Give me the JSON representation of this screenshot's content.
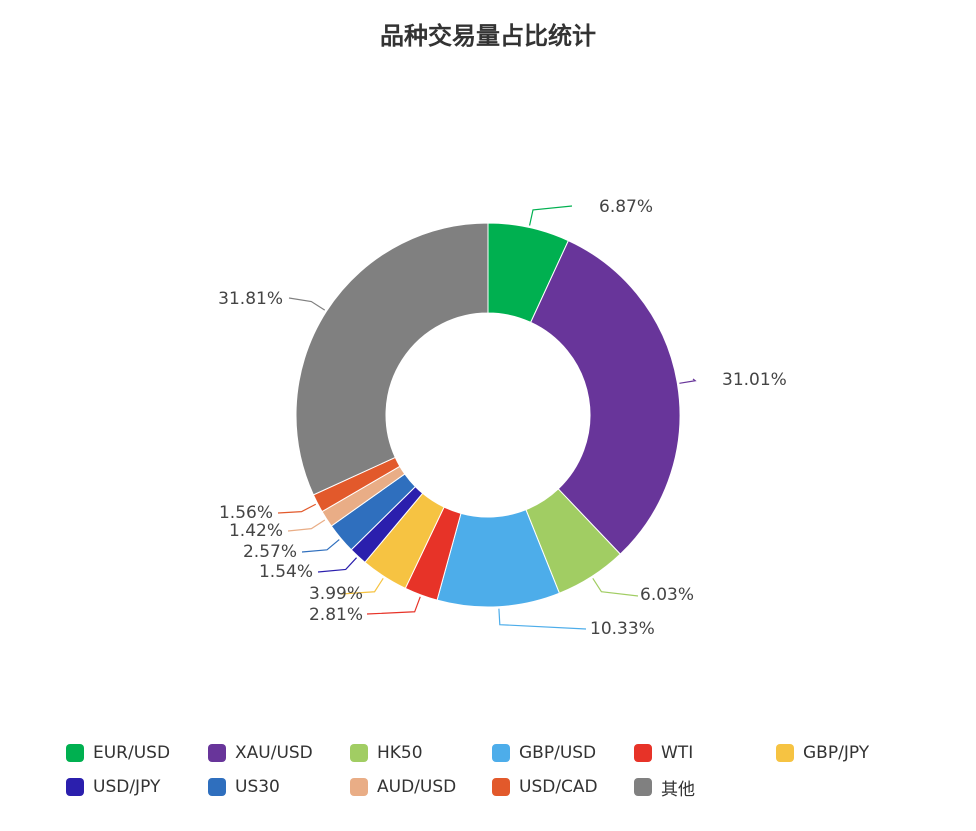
{
  "chart_data": {
    "type": "pie",
    "title": "品种交易量占比统计",
    "series": [
      {
        "name": "EUR/USD",
        "value": 6.87,
        "label": "6.87%",
        "color": "#00b050"
      },
      {
        "name": "XAU/USD",
        "value": 31.01,
        "label": "31.01%",
        "color": "#68359a"
      },
      {
        "name": "HK50",
        "value": 6.03,
        "label": "6.03%",
        "color": "#a1cd63"
      },
      {
        "name": "GBP/USD",
        "value": 10.33,
        "label": "10.33%",
        "color": "#4dadea"
      },
      {
        "name": "WTI",
        "value": 2.81,
        "label": "2.81%",
        "color": "#e73328"
      },
      {
        "name": "GBP/JPY",
        "value": 3.99,
        "label": "3.99%",
        "color": "#f6c342"
      },
      {
        "name": "USD/JPY",
        "value": 1.54,
        "label": "1.54%",
        "color": "#2b1fad"
      },
      {
        "name": "US30",
        "value": 2.57,
        "label": "2.57%",
        "color": "#2f6fbe"
      },
      {
        "name": "AUD/USD",
        "value": 1.42,
        "label": "1.42%",
        "color": "#e9ad86"
      },
      {
        "name": "USD/CAD",
        "value": 1.56,
        "label": "1.56%",
        "color": "#e2592b"
      },
      {
        "name": "其他",
        "value": 31.81,
        "label": "31.81%",
        "color": "#808080"
      }
    ],
    "legend_position": "bottom",
    "donut": true
  }
}
